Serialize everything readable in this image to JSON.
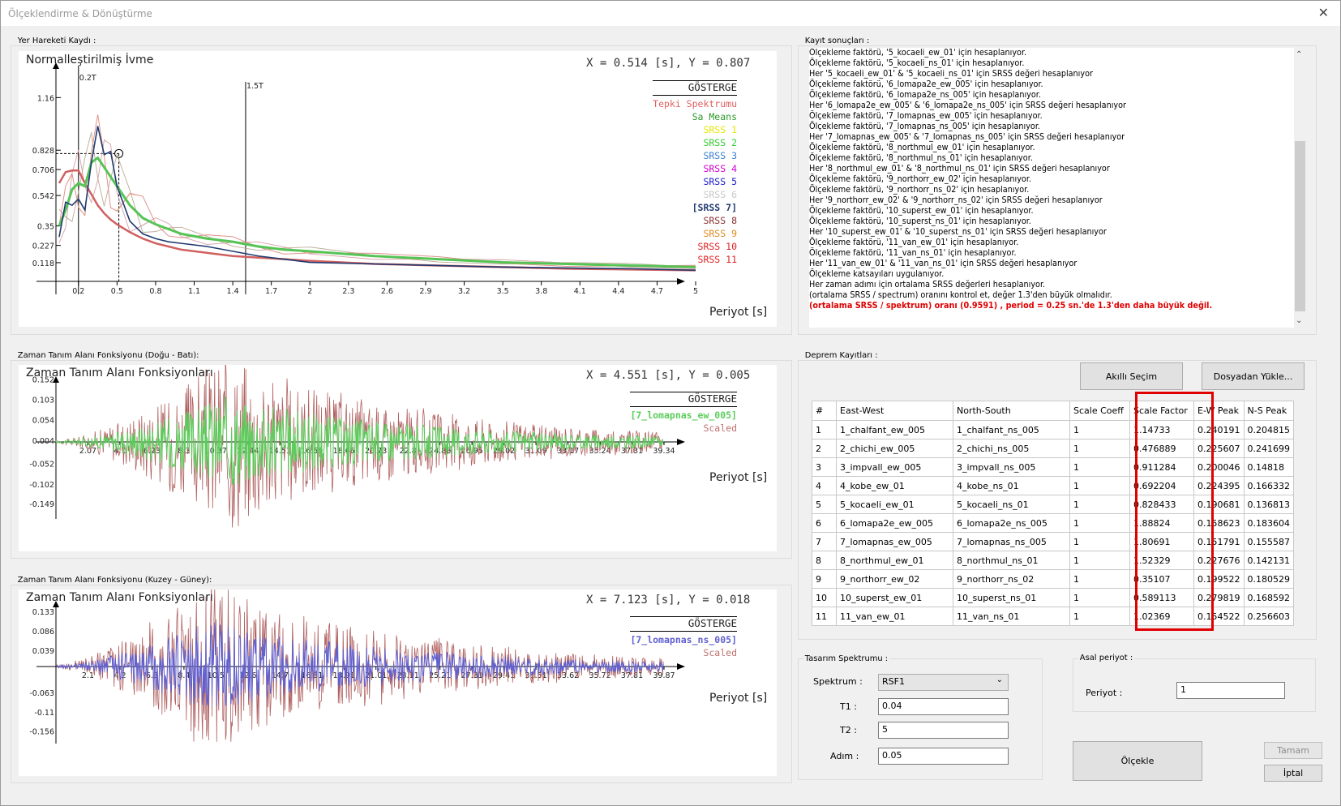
{
  "window": {
    "title": "Ölçeklendirme & Dönüştürme",
    "close": "✕"
  },
  "spectrum_panel": {
    "group_label": "Yer Hareketi Kaydı :",
    "title": "Normalleştirilmiş İvme",
    "coord_readout": "X = 0.514 [s],  Y = 0.807",
    "xlabel": "Periyot [s]",
    "legend_header": "GÖSTERGE",
    "legend": [
      {
        "label": "Tepki Spektrumu",
        "color": "#e06060"
      },
      {
        "label": "Sa Means",
        "color": "#2e9a2e"
      },
      {
        "label": "SRSS 1",
        "color": "#e6e600"
      },
      {
        "label": "SRSS 2",
        "color": "#33cc33"
      },
      {
        "label": "SRSS 3",
        "color": "#3a7fd0"
      },
      {
        "label": "SRSS 4",
        "color": "#d000d0"
      },
      {
        "label": "SRSS 5",
        "color": "#1a1acc"
      },
      {
        "label": "SRSS 6",
        "color": "#c8c8c8"
      },
      {
        "label": "[SRSS 7]",
        "color": "#203a70"
      },
      {
        "label": "SRSS 8",
        "color": "#8b3030"
      },
      {
        "label": "SRSS 9",
        "color": "#e08a20"
      },
      {
        "label": "SRSS 10",
        "color": "#e02020"
      },
      {
        "label": "SRSS 11",
        "color": "#e02020"
      }
    ]
  },
  "chart_data": [
    {
      "type": "line",
      "title": "Normalleştirilmiş İvme",
      "xlabel": "Periyot [s]",
      "xlim": [
        0,
        5
      ],
      "yticks": [
        0.118,
        0.227,
        0.35,
        0.542,
        0.706,
        0.828,
        1.16
      ],
      "xticks": [
        "0.2",
        "0.5",
        "0.8",
        "1.1",
        "1.4",
        "1.7",
        "2",
        "2.3",
        "2.6",
        "2.9",
        "3.2",
        "3.5",
        "3.8",
        "4.1",
        "4.4",
        "4.7",
        "5"
      ],
      "annotations": [
        "0.2T",
        "1.5T"
      ],
      "x": [
        0.05,
        0.1,
        0.15,
        0.2,
        0.25,
        0.3,
        0.35,
        0.4,
        0.45,
        0.5,
        0.6,
        0.7,
        0.8,
        0.9,
        1.0,
        1.2,
        1.4,
        1.6,
        1.8,
        2.0,
        2.5,
        3.0,
        3.5,
        4.0,
        4.5,
        5.0
      ],
      "series": [
        {
          "name": "Tepki Spektrumu",
          "values": [
            0.62,
            0.69,
            0.7,
            0.7,
            0.62,
            0.55,
            0.48,
            0.43,
            0.39,
            0.36,
            0.31,
            0.27,
            0.24,
            0.22,
            0.2,
            0.18,
            0.16,
            0.15,
            0.14,
            0.13,
            0.11,
            0.1,
            0.09,
            0.08,
            0.075,
            0.07
          ]
        },
        {
          "name": "Sa Means",
          "values": [
            0.35,
            0.45,
            0.58,
            0.62,
            0.6,
            0.75,
            0.78,
            0.72,
            0.66,
            0.6,
            0.48,
            0.4,
            0.36,
            0.33,
            0.3,
            0.27,
            0.25,
            0.22,
            0.2,
            0.19,
            0.16,
            0.14,
            0.12,
            0.11,
            0.1,
            0.09
          ]
        },
        {
          "name": "[SRSS 7]",
          "values": [
            0.28,
            0.5,
            0.48,
            0.52,
            0.45,
            0.75,
            0.98,
            0.8,
            0.82,
            0.6,
            0.38,
            0.3,
            0.27,
            0.25,
            0.24,
            0.22,
            0.19,
            0.16,
            0.14,
            0.12,
            0.11,
            0.1,
            0.09,
            0.085,
            0.08,
            0.07
          ]
        }
      ]
    },
    {
      "type": "line",
      "title": "Zaman Tanım Alanı Fonksiyonları",
      "xlabel": "Periyot [s]",
      "yticks": [
        0.152,
        0.103,
        0.054,
        0.004,
        -0.052,
        -0.102,
        -0.149
      ],
      "xticks": [
        "2.07",
        "4.1",
        "6.23",
        "8.3",
        "10.37",
        "12.44",
        "14.51",
        "16.59",
        "18.66",
        "20.73",
        "22.8",
        "24.88",
        "26.95",
        "29.02",
        "31.09",
        "33.17",
        "35.24",
        "37.31",
        "39.34"
      ],
      "series": [
        {
          "name": "[7_lomapnas_ew_005]"
        },
        {
          "name": "Scaled"
        }
      ]
    },
    {
      "type": "line",
      "title": "Zaman Tanım Alanı Fonksiyonları",
      "xlabel": "Periyot [s]",
      "yticks": [
        0.133,
        0.086,
        0.039,
        -0.063,
        -0.11,
        -0.156
      ],
      "xticks": [
        "2.1",
        "4.2",
        "6.3",
        "8.4",
        "10.5",
        "12.6",
        "14.7",
        "16.81",
        "18.91",
        "21.01",
        "23.11",
        "25.21",
        "27.31",
        "29.41",
        "31.51",
        "33.62",
        "35.72",
        "37.81",
        "39.87"
      ],
      "series": [
        {
          "name": "[7_lomapnas_ns_005]"
        },
        {
          "name": "Scaled"
        }
      ]
    }
  ],
  "ew_panel": {
    "group_label": "Zaman Tanım Alanı Fonksiyonu (Doğu - Batı):",
    "title": "Zaman Tanım Alanı Fonksiyonları",
    "coord_readout": "X = 4.551 [s],  Y = 0.005",
    "xlabel": "Periyot [s]",
    "legend_header": "GÖSTERGE",
    "legend": [
      {
        "label": "[7_lomapnas_ew_005]",
        "color": "#5acd5a"
      },
      {
        "label": "Scaled",
        "color": "#c07070"
      }
    ]
  },
  "ns_panel": {
    "group_label": "Zaman Tanım Alanı Fonksiyonu (Kuzey - Güney):",
    "title": "Zaman Tanım Alanı Fonksiyonları",
    "coord_readout": "X = 7.123 [s],  Y = 0.018",
    "xlabel": "Periyot [s]",
    "legend_header": "GÖSTERGE",
    "legend": [
      {
        "label": "[7_lomapnas_ns_005]",
        "color": "#6060d0"
      },
      {
        "label": "Scaled",
        "color": "#c07070"
      }
    ]
  },
  "log_panel": {
    "group_label": "Kayıt sonuçları :",
    "lines": [
      "Ölçekleme faktörü, '5_kocaeli_ew_01' için hesaplanıyor.",
      "Ölçekleme faktörü, '5_kocaeli_ns_01' için hesaplanıyor.",
      "Her '5_kocaeli_ew_01' & '5_kocaeli_ns_01' için SRSS değeri hesaplanıyor",
      "Ölçekleme faktörü, '6_lomapa2e_ew_005' için hesaplanıyor.",
      "Ölçekleme faktörü, '6_lomapa2e_ns_005' için hesaplanıyor.",
      "Her '6_lomapa2e_ew_005' & '6_lomapa2e_ns_005' için SRSS değeri hesaplanıyor",
      "Ölçekleme faktörü, '7_lomapnas_ew_005' için hesaplanıyor.",
      "Ölçekleme faktörü, '7_lomapnas_ns_005' için hesaplanıyor.",
      "Her '7_lomapnas_ew_005' & '7_lomapnas_ns_005' için SRSS değeri hesaplanıyor",
      "Ölçekleme faktörü, '8_northmul_ew_01' için hesaplanıyor.",
      "Ölçekleme faktörü, '8_northmul_ns_01' için hesaplanıyor.",
      "Her '8_northmul_ew_01' & '8_northmul_ns_01' için SRSS değeri hesaplanıyor",
      "Ölçekleme faktörü, '9_northorr_ew_02' için hesaplanıyor.",
      "Ölçekleme faktörü, '9_northorr_ns_02' için hesaplanıyor.",
      "Her '9_northorr_ew_02' & '9_northorr_ns_02' için SRSS değeri hesaplanıyor",
      "Ölçekleme faktörü, '10_superst_ew_01' için hesaplanıyor.",
      "Ölçekleme faktörü, '10_superst_ns_01' için hesaplanıyor.",
      "Her '10_superst_ew_01' & '10_superst_ns_01' için SRSS değeri hesaplanıyor",
      "Ölçekleme faktörü, '11_van_ew_01' için hesaplanıyor.",
      "Ölçekleme faktörü, '11_van_ns_01' için hesaplanıyor.",
      "Her '11_van_ew_01' & '11_van_ns_01' için SRSS değeri hesaplanıyor",
      "Ölçekleme katsayıları uygulanıyor.",
      "Her zaman adımı için ortalama SRSS değerleri hesaplanıyor.",
      "(ortalama SRSS / spectrum) oranını kontrol et, değer 1.3'den büyük olmalıdır."
    ],
    "warning": "(ortalama SRSS / spektrum) oranı  (0.9591) , period = 0.25 sn.'de 1.3'den daha büyük değil."
  },
  "records_panel": {
    "group_label": "Deprem Kayıtları :",
    "smart_select": "Akıllı Seçim",
    "load_file": "Dosyadan Yükle...",
    "columns": [
      "#",
      "East-West",
      "North-South",
      "Scale Coeff",
      "Scale Factor",
      "E-W Peak",
      "N-S Peak"
    ],
    "rows": [
      [
        "1",
        "1_chalfant_ew_005",
        "1_chalfant_ns_005",
        "1",
        "1.14733",
        "0.240191",
        "0.204815"
      ],
      [
        "2",
        "2_chichi_ew_005",
        "2_chichi_ns_005",
        "1",
        "0.476889",
        "0.225607",
        "0.241699"
      ],
      [
        "3",
        "3_impvall_ew_005",
        "3_impvall_ns_005",
        "1",
        "0.911284",
        "0.200046",
        "0.14818"
      ],
      [
        "4",
        "4_kobe_ew_01",
        "4_kobe_ns_01",
        "1",
        "0.692204",
        "0.224395",
        "0.166332"
      ],
      [
        "5",
        "5_kocaeli_ew_01",
        "5_kocaeli_ns_01",
        "1",
        "0.828433",
        "0.190681",
        "0.136813"
      ],
      [
        "6",
        "6_lomapa2e_ew_005",
        "6_lomapa2e_ns_005",
        "1",
        "1.88824",
        "0.158623",
        "0.183604"
      ],
      [
        "7",
        "7_lomapnas_ew_005",
        "7_lomapnas_ns_005",
        "1",
        "1.80691",
        "0.151791",
        "0.155587"
      ],
      [
        "8",
        "8_northmul_ew_01",
        "8_northmul_ns_01",
        "1",
        "1.52329",
        "0.227676",
        "0.142131"
      ],
      [
        "9",
        "9_northorr_ew_02",
        "9_northorr_ns_02",
        "1",
        "0.35107",
        "0.199522",
        "0.180529"
      ],
      [
        "10",
        "10_superst_ew_01",
        "10_superst_ns_01",
        "1",
        "0.589113",
        "0.279819",
        "0.168592"
      ],
      [
        "11",
        "11_van_ew_01",
        "11_van_ns_01",
        "1",
        "1.02369",
        "0.154522",
        "0.256603"
      ]
    ]
  },
  "design_spectrum": {
    "group_label": "Tasarım Spektrumu :",
    "spectrum_label": "Spektrum :",
    "spectrum_value": "RSF1",
    "t1_label": "T1 :",
    "t1_value": "0.04",
    "t2_label": "T2 :",
    "t2_value": "5",
    "step_label": "Adım :",
    "step_value": "0.05"
  },
  "main_period": {
    "group_label": "Asal periyot :",
    "period_label": "Periyot :",
    "period_value": "1"
  },
  "actions": {
    "scale": "Ölçekle",
    "ok": "Tamam",
    "cancel": "İptal"
  }
}
